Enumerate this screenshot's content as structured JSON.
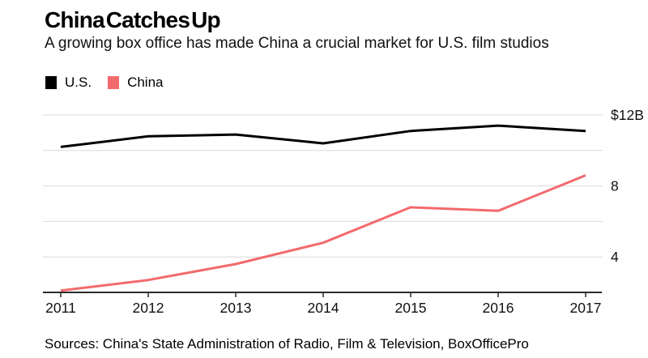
{
  "header": {
    "title": "China Catches Up",
    "subtitle": "A growing box office has made China a crucial market for U.S. film studios"
  },
  "legend": {
    "items": [
      {
        "id": "us",
        "label": "U.S.",
        "color": "#000000"
      },
      {
        "id": "china",
        "label": "China",
        "color": "#f26a6d"
      }
    ]
  },
  "footer": {
    "sources": "Sources: China's State Administration of Radio, Film & Television, BoxOfficePro"
  },
  "chart_data": {
    "type": "line",
    "title": "China Catches Up",
    "subtitle": "A growing box office has made China a crucial market for U.S. film studios",
    "unit": "$B",
    "x": [
      2011,
      2012,
      2013,
      2014,
      2015,
      2016,
      2017
    ],
    "series": [
      {
        "name": "U.S.",
        "color": "#000000",
        "values": [
          10.2,
          10.8,
          10.9,
          10.4,
          11.1,
          11.4,
          11.1
        ]
      },
      {
        "name": "China",
        "color": "#f26a6d",
        "values": [
          2.1,
          2.7,
          3.6,
          4.8,
          6.8,
          6.6,
          8.6
        ]
      }
    ],
    "ylim": [
      2,
      12.6
    ],
    "yticks": [
      {
        "value": 12,
        "label": "$12B"
      },
      {
        "value": 8,
        "label": "8"
      },
      {
        "value": 4,
        "label": "4"
      }
    ],
    "gridline_values": [
      12,
      10,
      8,
      6,
      4
    ],
    "grid": true,
    "legend_position": "top-left",
    "colors": {
      "gridline": "#d9d9d9",
      "axis": "#2b2b2b",
      "tick_label": "#111111"
    }
  }
}
